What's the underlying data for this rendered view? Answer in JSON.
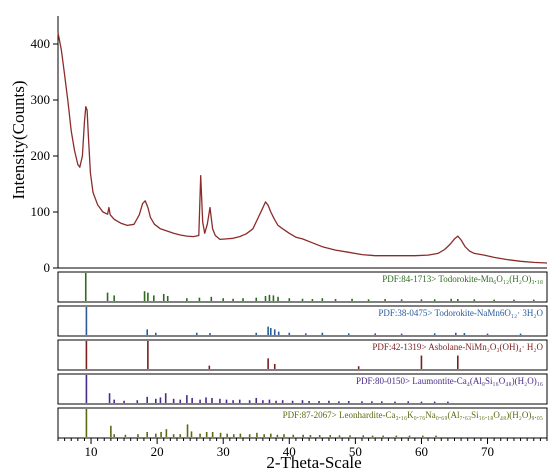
{
  "chart_data": {
    "type": "line",
    "xlabel": "2-Theta-Scale",
    "ylabel": "Intensity(Counts)",
    "xlim": [
      5,
      79
    ],
    "ylim": [
      0,
      450
    ],
    "xticks": [
      10,
      20,
      30,
      40,
      50,
      60,
      70
    ],
    "yticks": [
      0,
      100,
      200,
      300,
      400
    ],
    "series": [
      {
        "color": "#8b2c2c",
        "x": [
          5.0,
          5.5,
          6.0,
          6.5,
          7.0,
          7.5,
          8.0,
          8.3,
          8.7,
          9.0,
          9.2,
          9.4,
          9.6,
          9.9,
          10.3,
          11.0,
          11.8,
          12.5,
          12.7,
          12.9,
          13.5,
          14.5,
          15.5,
          16.5,
          17.3,
          17.8,
          18.2,
          18.6,
          19.0,
          19.6,
          20.5,
          21.5,
          22.5,
          23.5,
          24.5,
          25.5,
          26.3,
          26.6,
          26.9,
          27.2,
          27.6,
          28.0,
          28.4,
          28.8,
          29.5,
          30.5,
          31.5,
          32.5,
          33.5,
          34.5,
          35.3,
          35.9,
          36.4,
          36.8,
          37.2,
          37.7,
          38.3,
          39.0,
          40.0,
          41.0,
          42.0,
          43.5,
          45.0,
          47.0,
          49.0,
          51.0,
          53.0,
          55.0,
          57.0,
          59.0,
          61.0,
          62.5,
          63.5,
          64.3,
          65.0,
          65.5,
          66.0,
          66.6,
          67.3,
          68.0,
          69.5,
          71.0,
          73.0,
          75.0,
          77.0,
          79.0
        ],
        "y": [
          420,
          390,
          345,
          298,
          245,
          210,
          185,
          180,
          200,
          260,
          288,
          282,
          235,
          170,
          135,
          113,
          100,
          96,
          108,
          95,
          87,
          80,
          76,
          78,
          95,
          115,
          120,
          108,
          90,
          78,
          70,
          66,
          62,
          59,
          57,
          56,
          58,
          165,
          82,
          62,
          78,
          108,
          70,
          58,
          51,
          52,
          53,
          56,
          61,
          70,
          90,
          105,
          118,
          112,
          100,
          88,
          76,
          70,
          62,
          55,
          52,
          45,
          38,
          32,
          28,
          24,
          22,
          22,
          22,
          22,
          23,
          26,
          33,
          42,
          52,
          57,
          50,
          38,
          30,
          26,
          23,
          19,
          15,
          12,
          10,
          9
        ]
      }
    ],
    "references": [
      {
        "label": "PDF:84-1713> Todorokite-Mn₆O₁₂(H₂O)₃.₁₈",
        "color": "#2e6b1e",
        "peaks": [
          [
            9.2,
            1.0
          ],
          [
            12.5,
            0.3
          ],
          [
            13.5,
            0.2
          ],
          [
            18.1,
            0.35
          ],
          [
            18.6,
            0.3
          ],
          [
            19.5,
            0.2
          ],
          [
            21.0,
            0.25
          ],
          [
            21.6,
            0.18
          ],
          [
            24.5,
            0.1
          ],
          [
            26.4,
            0.12
          ],
          [
            28.2,
            0.15
          ],
          [
            30.0,
            0.1
          ],
          [
            31.5,
            0.08
          ],
          [
            33.0,
            0.1
          ],
          [
            35.0,
            0.12
          ],
          [
            36.4,
            0.18
          ],
          [
            37.0,
            0.22
          ],
          [
            37.6,
            0.2
          ],
          [
            38.3,
            0.15
          ],
          [
            40.0,
            0.1
          ],
          [
            42.0,
            0.08
          ],
          [
            43.5,
            0.07
          ],
          [
            45.0,
            0.1
          ],
          [
            47.0,
            0.07
          ],
          [
            49.5,
            0.08
          ],
          [
            52.0,
            0.06
          ],
          [
            54.5,
            0.07
          ],
          [
            57.0,
            0.06
          ],
          [
            60.0,
            0.06
          ],
          [
            62.0,
            0.06
          ],
          [
            64.5,
            0.08
          ],
          [
            65.5,
            0.07
          ],
          [
            68.0,
            0.06
          ],
          [
            71.0,
            0.05
          ],
          [
            74.0,
            0.05
          ],
          [
            77.0,
            0.05
          ]
        ]
      },
      {
        "label": "PDF:38-0475> Todorokite-NaMn6O₁₂· 3H₂O",
        "color": "#2a5a9c",
        "peaks": [
          [
            9.3,
            1.0
          ],
          [
            18.5,
            0.2
          ],
          [
            19.8,
            0.08
          ],
          [
            26.0,
            0.08
          ],
          [
            28.0,
            0.07
          ],
          [
            35.0,
            0.08
          ],
          [
            36.8,
            0.3
          ],
          [
            37.2,
            0.25
          ],
          [
            37.8,
            0.2
          ],
          [
            38.4,
            0.12
          ],
          [
            40.0,
            0.08
          ],
          [
            42.5,
            0.06
          ],
          [
            45.0,
            0.08
          ],
          [
            49.0,
            0.06
          ],
          [
            53.0,
            0.06
          ],
          [
            57.0,
            0.05
          ],
          [
            62.0,
            0.06
          ],
          [
            65.2,
            0.08
          ],
          [
            66.5,
            0.07
          ],
          [
            70.0,
            0.05
          ],
          [
            75.0,
            0.05
          ]
        ]
      },
      {
        "label": "PDF:42-1319> Asbolane-NiMn₂O₃(OH)₄· H₂O",
        "color": "#7a1f1f",
        "peaks": [
          [
            9.3,
            1.0
          ],
          [
            18.6,
            1.0
          ],
          [
            27.9,
            0.12
          ],
          [
            36.8,
            0.38
          ],
          [
            37.8,
            0.18
          ],
          [
            50.5,
            0.1
          ],
          [
            60.0,
            0.48
          ],
          [
            65.5,
            0.48
          ]
        ]
      },
      {
        "label": "PDF:80-0150> Laumontite-Ca₄(Al₈Si₁₆O₄₈)(H₂O)₁₆",
        "color": "#4a2a86",
        "peaks": [
          [
            9.3,
            1.0
          ],
          [
            12.8,
            0.35
          ],
          [
            13.5,
            0.12
          ],
          [
            15.0,
            0.08
          ],
          [
            17.0,
            0.1
          ],
          [
            18.5,
            0.22
          ],
          [
            19.8,
            0.15
          ],
          [
            20.5,
            0.2
          ],
          [
            21.3,
            0.35
          ],
          [
            22.5,
            0.15
          ],
          [
            23.5,
            0.12
          ],
          [
            24.5,
            0.28
          ],
          [
            25.3,
            0.18
          ],
          [
            26.5,
            0.12
          ],
          [
            27.4,
            0.2
          ],
          [
            28.3,
            0.18
          ],
          [
            29.5,
            0.15
          ],
          [
            30.5,
            0.12
          ],
          [
            31.5,
            0.1
          ],
          [
            32.5,
            0.12
          ],
          [
            34.0,
            0.1
          ],
          [
            35.0,
            0.18
          ],
          [
            36.0,
            0.1
          ],
          [
            37.0,
            0.12
          ],
          [
            38.0,
            0.08
          ],
          [
            39.0,
            0.1
          ],
          [
            40.5,
            0.08
          ],
          [
            42.0,
            0.1
          ],
          [
            43.0,
            0.07
          ],
          [
            44.5,
            0.07
          ],
          [
            46.0,
            0.08
          ],
          [
            47.5,
            0.06
          ],
          [
            49.0,
            0.07
          ],
          [
            51.0,
            0.06
          ],
          [
            52.5,
            0.06
          ],
          [
            54.0,
            0.06
          ],
          [
            56.0,
            0.05
          ],
          [
            58.0,
            0.06
          ],
          [
            60.0,
            0.05
          ],
          [
            62.0,
            0.05
          ],
          [
            64.0,
            0.05
          ]
        ]
      },
      {
        "label": "PDF:87-2067> Leonhardite-Ca₃.₁₆K₀.₇₆Na₀.₆₉(Al₇.₆₃Si₁₆.₁₈O₄₈)(H₂O)₉.₀₅",
        "color": "#5a6a10",
        "peaks": [
          [
            9.3,
            1.0
          ],
          [
            13.0,
            0.4
          ],
          [
            13.5,
            0.1
          ],
          [
            15.2,
            0.08
          ],
          [
            17.1,
            0.1
          ],
          [
            18.5,
            0.18
          ],
          [
            19.8,
            0.12
          ],
          [
            20.6,
            0.18
          ],
          [
            21.4,
            0.28
          ],
          [
            22.5,
            0.1
          ],
          [
            23.5,
            0.1
          ],
          [
            24.6,
            0.45
          ],
          [
            25.2,
            0.2
          ],
          [
            26.5,
            0.12
          ],
          [
            27.5,
            0.18
          ],
          [
            28.4,
            0.18
          ],
          [
            29.6,
            0.15
          ],
          [
            30.6,
            0.12
          ],
          [
            31.6,
            0.1
          ],
          [
            32.6,
            0.12
          ],
          [
            34.0,
            0.1
          ],
          [
            35.1,
            0.15
          ],
          [
            36.2,
            0.1
          ],
          [
            37.2,
            0.12
          ],
          [
            38.2,
            0.08
          ],
          [
            39.2,
            0.1
          ],
          [
            40.6,
            0.08
          ],
          [
            42.1,
            0.08
          ],
          [
            43.2,
            0.07
          ],
          [
            44.6,
            0.07
          ],
          [
            46.2,
            0.07
          ],
          [
            47.6,
            0.06
          ],
          [
            49.2,
            0.06
          ],
          [
            51.2,
            0.06
          ],
          [
            52.6,
            0.05
          ],
          [
            54.2,
            0.05
          ],
          [
            56.2,
            0.05
          ],
          [
            58.2,
            0.05
          ],
          [
            60.2,
            0.05
          ],
          [
            62.2,
            0.05
          ]
        ]
      }
    ]
  }
}
